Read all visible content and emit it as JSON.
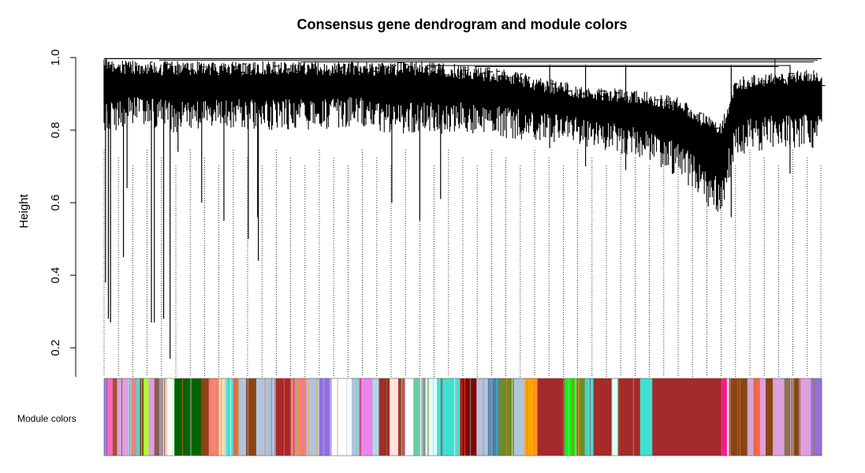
{
  "chart_data": {
    "type": "dendrogram",
    "title": "Consensus gene dendrogram and module colors",
    "ylabel": "Height",
    "xlabel": "",
    "ylim": [
      0.12,
      1.0
    ],
    "y_ticks": [
      0.2,
      0.4,
      0.6,
      0.8,
      1.0
    ],
    "y_tick_labels": [
      "0.2",
      "0.4",
      "0.6",
      "0.8",
      "1.0"
    ],
    "color_bar_label": "Module colors",
    "grid": false,
    "merge_height_profile": [
      {
        "x": 0.0,
        "top": 1.0,
        "bottom": 0.82
      },
      {
        "x": 0.05,
        "top": 0.99,
        "bottom": 0.84
      },
      {
        "x": 0.1,
        "top": 0.99,
        "bottom": 0.82
      },
      {
        "x": 0.15,
        "top": 0.99,
        "bottom": 0.84
      },
      {
        "x": 0.2,
        "top": 0.99,
        "bottom": 0.83
      },
      {
        "x": 0.25,
        "top": 0.99,
        "bottom": 0.83
      },
      {
        "x": 0.3,
        "top": 0.99,
        "bottom": 0.83
      },
      {
        "x": 0.35,
        "top": 0.99,
        "bottom": 0.84
      },
      {
        "x": 0.4,
        "top": 0.99,
        "bottom": 0.82
      },
      {
        "x": 0.45,
        "top": 0.99,
        "bottom": 0.82
      },
      {
        "x": 0.5,
        "top": 0.98,
        "bottom": 0.82
      },
      {
        "x": 0.55,
        "top": 0.97,
        "bottom": 0.81
      },
      {
        "x": 0.6,
        "top": 0.95,
        "bottom": 0.8
      },
      {
        "x": 0.65,
        "top": 0.93,
        "bottom": 0.79
      },
      {
        "x": 0.7,
        "top": 0.92,
        "bottom": 0.77
      },
      {
        "x": 0.75,
        "top": 0.91,
        "bottom": 0.75
      },
      {
        "x": 0.8,
        "top": 0.89,
        "bottom": 0.7
      },
      {
        "x": 0.86,
        "top": 0.82,
        "bottom": 0.58
      },
      {
        "x": 0.88,
        "top": 0.95,
        "bottom": 0.76
      },
      {
        "x": 0.94,
        "top": 0.96,
        "bottom": 0.78
      },
      {
        "x": 1.0,
        "top": 0.97,
        "bottom": 0.78
      }
    ],
    "deep_leaves": [
      {
        "x": 0.0,
        "y": 0.82
      },
      {
        "x": 0.002,
        "y": 0.38
      },
      {
        "x": 0.006,
        "y": 0.28
      },
      {
        "x": 0.009,
        "y": 0.27
      },
      {
        "x": 0.027,
        "y": 0.45
      },
      {
        "x": 0.032,
        "y": 0.64
      },
      {
        "x": 0.066,
        "y": 0.27
      },
      {
        "x": 0.07,
        "y": 0.27
      },
      {
        "x": 0.083,
        "y": 0.28
      },
      {
        "x": 0.092,
        "y": 0.17
      },
      {
        "x": 0.103,
        "y": 0.74
      },
      {
        "x": 0.136,
        "y": 0.6
      },
      {
        "x": 0.167,
        "y": 0.55
      },
      {
        "x": 0.201,
        "y": 0.5
      },
      {
        "x": 0.214,
        "y": 0.56
      },
      {
        "x": 0.215,
        "y": 0.44
      },
      {
        "x": 0.401,
        "y": 0.6
      },
      {
        "x": 0.44,
        "y": 0.55
      },
      {
        "x": 0.469,
        "y": 0.61
      },
      {
        "x": 0.621,
        "y": 0.75
      },
      {
        "x": 0.671,
        "y": 0.7
      },
      {
        "x": 0.727,
        "y": 0.69
      },
      {
        "x": 0.874,
        "y": 0.56
      },
      {
        "x": 0.956,
        "y": 0.68
      }
    ],
    "module_colors": [
      {
        "start": 0.0,
        "end": 0.005,
        "color": "#9370db"
      },
      {
        "start": 0.005,
        "end": 0.012,
        "color": "#ff69b4"
      },
      {
        "start": 0.012,
        "end": 0.018,
        "color": "#a0522d"
      },
      {
        "start": 0.018,
        "end": 0.033,
        "color": "#dda0dd"
      },
      {
        "start": 0.033,
        "end": 0.038,
        "color": "#b0c4de"
      },
      {
        "start": 0.038,
        "end": 0.045,
        "color": "#f08080"
      },
      {
        "start": 0.045,
        "end": 0.05,
        "color": "#40e0d0"
      },
      {
        "start": 0.05,
        "end": 0.055,
        "color": "#8b4513"
      },
      {
        "start": 0.055,
        "end": 0.062,
        "color": "#adff2f"
      },
      {
        "start": 0.062,
        "end": 0.07,
        "color": "#dda0dd"
      },
      {
        "start": 0.07,
        "end": 0.085,
        "color": "#8b5a5a"
      },
      {
        "start": 0.085,
        "end": 0.098,
        "color": "#f0fff0"
      },
      {
        "start": 0.098,
        "end": 0.135,
        "color": "#006400"
      },
      {
        "start": 0.135,
        "end": 0.146,
        "color": "#8b4513"
      },
      {
        "start": 0.146,
        "end": 0.16,
        "color": "#f08080"
      },
      {
        "start": 0.16,
        "end": 0.168,
        "color": "#ffdead"
      },
      {
        "start": 0.168,
        "end": 0.18,
        "color": "#40e0d0"
      },
      {
        "start": 0.18,
        "end": 0.188,
        "color": "#ff6347"
      },
      {
        "start": 0.188,
        "end": 0.198,
        "color": "#b0c4de"
      },
      {
        "start": 0.198,
        "end": 0.212,
        "color": "#8b4513"
      },
      {
        "start": 0.212,
        "end": 0.238,
        "color": "#b0c4de"
      },
      {
        "start": 0.238,
        "end": 0.26,
        "color": "#a52a2a"
      },
      {
        "start": 0.26,
        "end": 0.282,
        "color": "#f08080"
      },
      {
        "start": 0.282,
        "end": 0.3,
        "color": "#b0c4de"
      },
      {
        "start": 0.3,
        "end": 0.317,
        "color": "#9370db"
      },
      {
        "start": 0.317,
        "end": 0.33,
        "color": "#ffffff"
      },
      {
        "start": 0.33,
        "end": 0.345,
        "color": "#ffffff"
      },
      {
        "start": 0.345,
        "end": 0.356,
        "color": "#b0c4de"
      },
      {
        "start": 0.356,
        "end": 0.374,
        "color": "#ee82ee"
      },
      {
        "start": 0.374,
        "end": 0.383,
        "color": "#add8e6"
      },
      {
        "start": 0.383,
        "end": 0.398,
        "color": "#a52a2a"
      },
      {
        "start": 0.398,
        "end": 0.41,
        "color": "#ffe4e1"
      },
      {
        "start": 0.41,
        "end": 0.419,
        "color": "#a52a2a"
      },
      {
        "start": 0.419,
        "end": 0.431,
        "color": "#ffffff"
      },
      {
        "start": 0.431,
        "end": 0.448,
        "color": "#66cdaa"
      },
      {
        "start": 0.448,
        "end": 0.464,
        "color": "#e0ffff"
      },
      {
        "start": 0.464,
        "end": 0.496,
        "color": "#40e0d0"
      },
      {
        "start": 0.496,
        "end": 0.519,
        "color": "#8b0000"
      },
      {
        "start": 0.519,
        "end": 0.535,
        "color": "#b0c4de"
      },
      {
        "start": 0.535,
        "end": 0.55,
        "color": "#4682b4"
      },
      {
        "start": 0.55,
        "end": 0.571,
        "color": "#6b8e23"
      },
      {
        "start": 0.571,
        "end": 0.586,
        "color": "#b0c4de"
      },
      {
        "start": 0.586,
        "end": 0.604,
        "color": "#ffa500"
      },
      {
        "start": 0.604,
        "end": 0.622,
        "color": "#a52a2a"
      },
      {
        "start": 0.622,
        "end": 0.642,
        "color": "#a52a2a"
      },
      {
        "start": 0.642,
        "end": 0.658,
        "color": "#00ff00"
      },
      {
        "start": 0.658,
        "end": 0.67,
        "color": "#6b8e23"
      },
      {
        "start": 0.67,
        "end": 0.682,
        "color": "#40e0d0"
      },
      {
        "start": 0.682,
        "end": 0.707,
        "color": "#a52a2a"
      },
      {
        "start": 0.707,
        "end": 0.716,
        "color": "#e0ffff"
      },
      {
        "start": 0.716,
        "end": 0.747,
        "color": "#a52a2a"
      },
      {
        "start": 0.747,
        "end": 0.764,
        "color": "#40e0d0"
      },
      {
        "start": 0.764,
        "end": 0.86,
        "color": "#a52a2a"
      },
      {
        "start": 0.86,
        "end": 0.868,
        "color": "#ff1493"
      },
      {
        "start": 0.868,
        "end": 0.871,
        "color": "#ffe4e1"
      },
      {
        "start": 0.871,
        "end": 0.897,
        "color": "#8b4513"
      },
      {
        "start": 0.897,
        "end": 0.905,
        "color": "#dda0dd"
      },
      {
        "start": 0.905,
        "end": 0.914,
        "color": "#ff6347"
      },
      {
        "start": 0.914,
        "end": 0.922,
        "color": "#dda0dd"
      },
      {
        "start": 0.922,
        "end": 0.932,
        "color": "#8b4513"
      },
      {
        "start": 0.932,
        "end": 0.948,
        "color": "#dda0dd"
      },
      {
        "start": 0.948,
        "end": 0.962,
        "color": "#8b7355"
      },
      {
        "start": 0.962,
        "end": 0.97,
        "color": "#8b4513"
      },
      {
        "start": 0.97,
        "end": 0.985,
        "color": "#dda0dd"
      },
      {
        "start": 0.985,
        "end": 1.0,
        "color": "#9370db"
      }
    ]
  }
}
